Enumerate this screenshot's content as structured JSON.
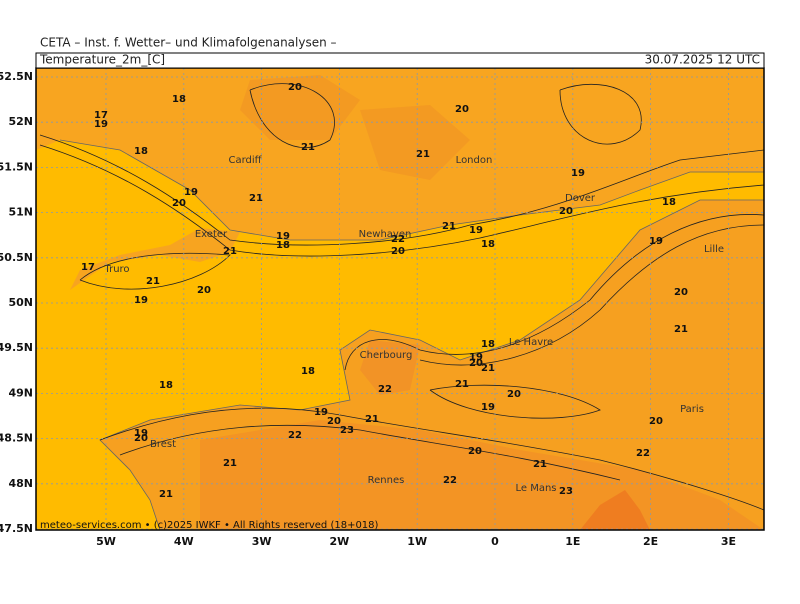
{
  "header": {
    "institute": "CETA – Inst. f. Wetter– und Klimafolgenanalysen –",
    "parameter": "Temperature_2m_[C]",
    "datetime": "30.07.2025 12 UTC"
  },
  "footer": "meteo-services.com • (c)2025 IWKF • All Rights reserved (18+018)",
  "lat_labels": [
    "52.5N",
    "52N",
    "51.5N",
    "51N",
    "50.5N",
    "50N",
    "49.5N",
    "49N",
    "48.5N",
    "48N",
    "47.5N"
  ],
  "lon_labels": [
    "5W",
    "4W",
    "3W",
    "2W",
    "1W",
    "0",
    "1E",
    "2E",
    "3E"
  ],
  "cities": [
    "Cardiff",
    "London",
    "Dover",
    "Exeter",
    "Newhaven",
    "Truro",
    "Lille",
    "Le Havre",
    "Cherbourg",
    "Paris",
    "Brest",
    "Rennes",
    "Le Mans"
  ],
  "contour_labels": [
    18,
    20,
    20,
    17,
    19,
    18,
    21,
    21,
    19,
    19,
    20,
    21,
    20,
    18,
    19,
    18,
    21,
    21,
    19,
    22,
    20,
    18,
    19,
    17,
    21,
    20,
    19,
    20,
    21,
    18,
    19,
    20,
    21,
    18,
    18,
    22,
    21,
    20,
    19,
    19,
    20,
    21,
    23,
    22,
    19,
    20,
    20,
    21,
    20,
    22,
    21,
    22,
    23,
    21
  ]
}
